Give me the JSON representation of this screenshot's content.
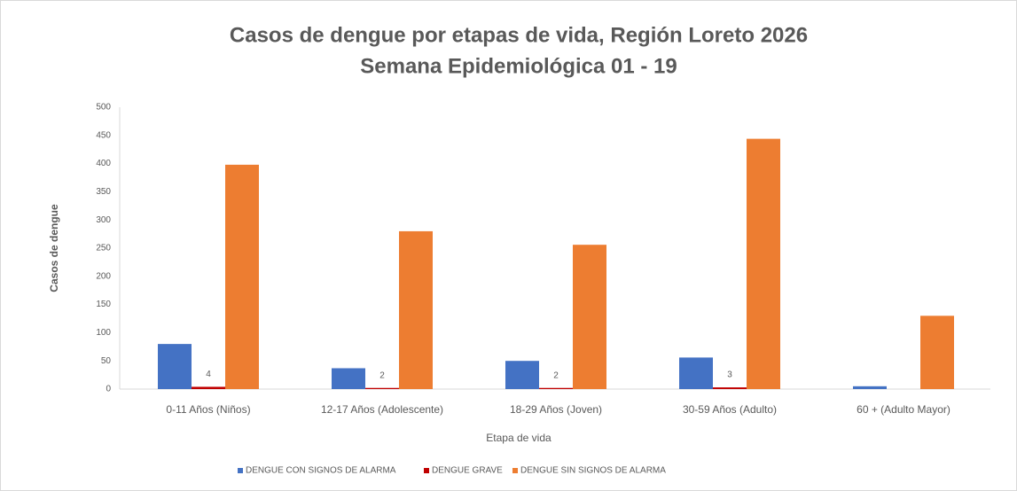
{
  "chart_data": {
    "type": "bar",
    "title": "Casos de dengue por etapas de vida, Región Loreto 2026",
    "subtitle": "Semana Epidemiológica 01 - 19",
    "x_label": "Etapa de vida",
    "y_label": "Casos de dengue",
    "categories": [
      "0-11 Años (Niños)",
      "12-17 Años (Adolescente)",
      "18-29 Años (Joven)",
      "30-59 Años (Adulto)",
      "60 + (Adulto Mayor)"
    ],
    "series": [
      {
        "name": "DENGUE CON SIGNOS DE ALARMA",
        "color": "#4472c4",
        "values": [
          80,
          37,
          50,
          56,
          5
        ]
      },
      {
        "name": "DENGUE GRAVE",
        "color": "#c00000",
        "values": [
          4,
          2,
          2,
          3,
          null
        ],
        "data_labels": true
      },
      {
        "name": "DENGUE SIN SIGNOS DE ALARMA",
        "color": "#ed7d31",
        "values": [
          398,
          280,
          256,
          444,
          130
        ]
      }
    ],
    "ylim": [
      0,
      500
    ],
    "yticks": [
      0,
      50,
      100,
      150,
      200,
      250,
      300,
      350,
      400,
      450,
      500
    ],
    "grid": false,
    "legend": "bottom"
  }
}
